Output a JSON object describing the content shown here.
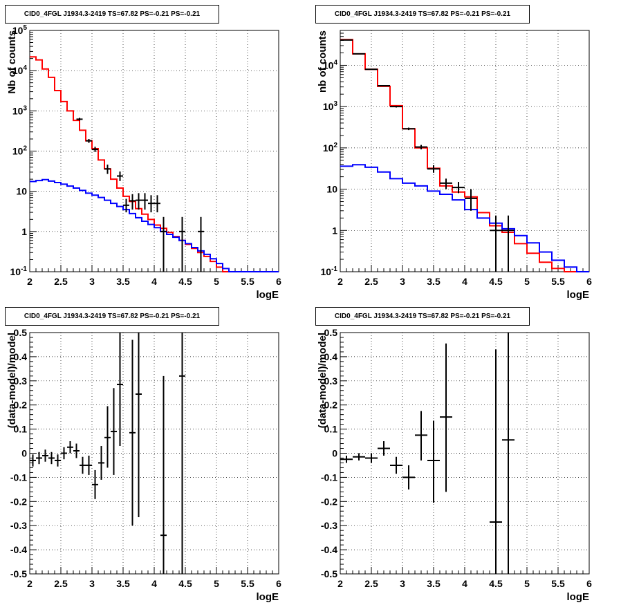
{
  "chart_data": [
    {
      "type": "step-histogram",
      "title": "CID0_4FGL J1934.3-2419 TS=67.82 PS=-0.21 PS=-0.21",
      "xlabel": "logE",
      "ylabel": "Nb of counts",
      "xlim": [
        2,
        6
      ],
      "ylim": [
        0.1,
        100000
      ],
      "yscale": "log",
      "grid": true,
      "xticks": [
        2,
        2.5,
        3,
        3.5,
        4,
        4.5,
        5,
        5.5,
        6
      ],
      "xtick_labels": [
        "2",
        "2.5",
        "3",
        "3.5",
        "4",
        "4.5",
        "5",
        "5.5",
        "6"
      ],
      "yticks": [
        0.1,
        1,
        10,
        100,
        1000,
        10000,
        100000
      ],
      "ytick_labels": [
        "10^-1",
        "1",
        "10",
        "10^2",
        "10^3",
        "10^4",
        "10^5"
      ],
      "bin_edges": [
        2.0,
        2.1,
        2.2,
        2.3,
        2.4,
        2.5,
        2.6,
        2.7,
        2.8,
        2.9,
        3.0,
        3.1,
        3.2,
        3.3,
        3.4,
        3.5,
        3.6,
        3.7,
        3.8,
        3.9,
        4.0,
        4.1,
        4.2,
        4.3,
        4.4,
        4.5,
        4.6,
        4.7,
        4.8,
        4.9,
        5.0,
        5.1,
        5.2,
        5.3,
        5.4,
        5.5,
        5.6,
        5.7,
        5.8,
        5.9,
        6.0
      ],
      "series": [
        {
          "color": "#ff0000",
          "style": "step",
          "values": [
            22000,
            18500,
            11000,
            6800,
            3200,
            1700,
            1000,
            580,
            330,
            180,
            115,
            60,
            36,
            20,
            12,
            7.5,
            5.6,
            3.7,
            2.7,
            2.0,
            1.45,
            1.2,
            0.95,
            0.75,
            0.6,
            0.48,
            0.38,
            0.3,
            0.24,
            0.18,
            0.13,
            0.1,
            0.1,
            0.1,
            0.1,
            0.1,
            0.1,
            0.1,
            0.1,
            0.1
          ]
        },
        {
          "color": "#0000ff",
          "style": "step",
          "values": [
            17.5,
            18.5,
            19.5,
            18,
            16.5,
            15,
            13.5,
            12,
            10.5,
            9,
            8,
            7,
            6,
            5,
            4.2,
            3.5,
            2.8,
            2.2,
            1.8,
            1.5,
            1.25,
            1.0,
            0.85,
            0.72,
            0.6,
            0.5,
            0.4,
            0.33,
            0.27,
            0.21,
            0.16,
            0.12,
            0.1,
            0.1,
            0.1,
            0.1,
            0.1,
            0.1,
            0.1,
            0.1
          ]
        },
        {
          "color": "#000000",
          "style": "data-points",
          "points": [
            {
              "x": 2.8,
              "y": 620,
              "ylo": 570,
              "yhi": 670
            },
            {
              "x": 2.95,
              "y": 180,
              "ylo": 160,
              "yhi": 200
            },
            {
              "x": 3.05,
              "y": 110,
              "ylo": 95,
              "yhi": 128
            },
            {
              "x": 3.25,
              "y": 36,
              "ylo": 27,
              "yhi": 46
            },
            {
              "x": 3.45,
              "y": 24,
              "ylo": 18,
              "yhi": 31
            },
            {
              "x": 3.55,
              "y": 4.5,
              "ylo": 3,
              "yhi": 6.5
            },
            {
              "x": 3.65,
              "y": 5.8,
              "ylo": 3.5,
              "yhi": 8.5
            },
            {
              "x": 3.75,
              "y": 6,
              "ylo": 3.5,
              "yhi": 9
            },
            {
              "x": 3.85,
              "y": 6,
              "ylo": 3.5,
              "yhi": 9
            },
            {
              "x": 3.95,
              "y": 5,
              "ylo": 3,
              "yhi": 8
            },
            {
              "x": 4.05,
              "y": 5,
              "ylo": 3,
              "yhi": 8
            },
            {
              "x": 4.15,
              "y": 1,
              "ylo": 0.1,
              "yhi": 2.3
            },
            {
              "x": 4.45,
              "y": 1,
              "ylo": 0.1,
              "yhi": 2.3
            },
            {
              "x": 4.75,
              "y": 1,
              "ylo": 0.1,
              "yhi": 2.3
            }
          ]
        }
      ]
    },
    {
      "type": "step-histogram",
      "title": "CID0_4FGL J1934.3-2419 TS=67.82 PS=-0.21 PS=-0.21",
      "xlabel": "logE",
      "ylabel": "nb of counts",
      "xlim": [
        2,
        6
      ],
      "ylim": [
        0.1,
        70000
      ],
      "yscale": "log",
      "grid": true,
      "xticks": [
        2,
        2.5,
        3,
        3.5,
        4,
        4.5,
        5,
        5.5,
        6
      ],
      "xtick_labels": [
        "2",
        "2.5",
        "3",
        "3.5",
        "4",
        "4.5",
        "5",
        "5.5",
        "6"
      ],
      "yticks": [
        0.1,
        1,
        10,
        100,
        1000,
        10000
      ],
      "ytick_labels": [
        "10^-1",
        "1",
        "10",
        "10^2",
        "10^3",
        "10^4"
      ],
      "bin_edges": [
        2.0,
        2.2,
        2.4,
        2.6,
        2.8,
        3.0,
        3.2,
        3.4,
        3.6,
        3.8,
        4.0,
        4.2,
        4.4,
        4.6,
        4.8,
        5.0,
        5.2,
        5.4,
        5.6,
        5.8,
        6.0
      ],
      "series": [
        {
          "color": "#ff0000",
          "style": "step",
          "values": [
            42000,
            19000,
            8000,
            3100,
            1050,
            290,
            100,
            32,
            12,
            8.5,
            6.5,
            2.7,
            1.3,
            0.9,
            0.48,
            0.28,
            0.17,
            0.12,
            0.1,
            0.1
          ]
        },
        {
          "color": "#0000ff",
          "style": "step",
          "values": [
            36,
            39,
            34,
            26,
            18,
            14,
            12,
            9,
            7.5,
            5.5,
            3.2,
            2.0,
            1.5,
            1.1,
            0.75,
            0.5,
            0.3,
            0.19,
            0.13,
            0.1
          ]
        },
        {
          "color": "#000000",
          "style": "data-points",
          "points": [
            {
              "x": 2.1,
              "y": 41000,
              "ylo": 40500,
              "yhi": 41500
            },
            {
              "x": 2.3,
              "y": 19000,
              "ylo": 18700,
              "yhi": 19300
            },
            {
              "x": 2.5,
              "y": 8000,
              "ylo": 7800,
              "yhi": 8200
            },
            {
              "x": 2.7,
              "y": 3200,
              "ylo": 3100,
              "yhi": 3300
            },
            {
              "x": 2.9,
              "y": 1000,
              "ylo": 950,
              "yhi": 1050
            },
            {
              "x": 3.1,
              "y": 290,
              "ylo": 270,
              "yhi": 310
            },
            {
              "x": 3.3,
              "y": 105,
              "ylo": 92,
              "yhi": 118
            },
            {
              "x": 3.5,
              "y": 31,
              "ylo": 25,
              "yhi": 38
            },
            {
              "x": 3.7,
              "y": 14,
              "ylo": 10,
              "yhi": 18
            },
            {
              "x": 3.9,
              "y": 11,
              "ylo": 8,
              "yhi": 15
            },
            {
              "x": 4.1,
              "y": 6,
              "ylo": 3,
              "yhi": 10
            },
            {
              "x": 4.5,
              "y": 1,
              "ylo": 0.1,
              "yhi": 2.3
            },
            {
              "x": 4.7,
              "y": 1,
              "ylo": 0.1,
              "yhi": 2.3
            }
          ]
        }
      ]
    },
    {
      "type": "scatter",
      "title": "CID0_4FGL J1934.3-2419 TS=67.82 PS=-0.21 PS=-0.21",
      "xlabel": "logE",
      "ylabel": "(data-model)/model",
      "xlim": [
        2,
        6
      ],
      "ylim": [
        -0.5,
        0.5
      ],
      "yscale": "linear",
      "grid": true,
      "xticks": [
        2,
        2.5,
        3,
        3.5,
        4,
        4.5,
        5,
        5.5,
        6
      ],
      "xtick_labels": [
        "2",
        "2.5",
        "3",
        "3.5",
        "4",
        "4.5",
        "5",
        "5.5",
        "6"
      ],
      "yticks": [
        -0.5,
        -0.4,
        -0.3,
        -0.2,
        -0.1,
        0,
        0.1,
        0.2,
        0.3,
        0.4,
        0.5
      ],
      "ytick_labels": [
        "-0.5",
        "-0.4",
        "-0.3",
        "-0.2",
        "-0.1",
        "0",
        "0.1",
        "0.2",
        "0.3",
        "0.4",
        "0.5"
      ],
      "series": [
        {
          "color": "#000000",
          "style": "data-points",
          "xerr": 0.05,
          "points": [
            {
              "x": 2.05,
              "y": -0.03,
              "ylo": -0.055,
              "yhi": -0.005
            },
            {
              "x": 2.15,
              "y": -0.02,
              "ylo": -0.045,
              "yhi": 0.005
            },
            {
              "x": 2.25,
              "y": -0.01,
              "ylo": -0.035,
              "yhi": 0.015
            },
            {
              "x": 2.35,
              "y": -0.02,
              "ylo": -0.045,
              "yhi": 0.005
            },
            {
              "x": 2.45,
              "y": -0.03,
              "ylo": -0.055,
              "yhi": -0.005
            },
            {
              "x": 2.55,
              "y": 0.0,
              "ylo": -0.025,
              "yhi": 0.025
            },
            {
              "x": 2.65,
              "y": 0.025,
              "ylo": 0.0,
              "yhi": 0.05
            },
            {
              "x": 2.75,
              "y": 0.01,
              "ylo": -0.02,
              "yhi": 0.04
            },
            {
              "x": 2.85,
              "y": -0.05,
              "ylo": -0.085,
              "yhi": -0.015
            },
            {
              "x": 2.95,
              "y": -0.05,
              "ylo": -0.09,
              "yhi": -0.01
            },
            {
              "x": 3.05,
              "y": -0.13,
              "ylo": -0.19,
              "yhi": -0.07
            },
            {
              "x": 3.15,
              "y": -0.04,
              "ylo": -0.11,
              "yhi": 0.03
            },
            {
              "x": 3.25,
              "y": 0.065,
              "ylo": -0.06,
              "yhi": 0.195
            },
            {
              "x": 3.35,
              "y": 0.09,
              "ylo": -0.09,
              "yhi": 0.27
            },
            {
              "x": 3.45,
              "y": 0.285,
              "ylo": 0.03,
              "yhi": 0.5
            },
            {
              "x": 3.65,
              "y": 0.085,
              "ylo": -0.3,
              "yhi": 0.47
            },
            {
              "x": 3.75,
              "y": 0.245,
              "ylo": -0.265,
              "yhi": 0.5
            },
            {
              "x": 4.15,
              "y": -0.34,
              "ylo": -0.5,
              "yhi": 0.32
            },
            {
              "x": 4.45,
              "y": 0.32,
              "ylo": -0.5,
              "yhi": 0.5
            }
          ]
        }
      ]
    },
    {
      "type": "scatter",
      "title": "CID0_4FGL J1934.3-2419 TS=67.82 PS=-0.21 PS=-0.21",
      "xlabel": "logE",
      "ylabel": "(data-model)/model",
      "xlim": [
        2,
        6
      ],
      "ylim": [
        -0.5,
        0.5
      ],
      "yscale": "linear",
      "grid": true,
      "xticks": [
        2,
        2.5,
        3,
        3.5,
        4,
        4.5,
        5,
        5.5,
        6
      ],
      "xtick_labels": [
        "2",
        "2.5",
        "3",
        "3.5",
        "4",
        "4.5",
        "5",
        "5.5",
        "6"
      ],
      "yticks": [
        -0.5,
        -0.4,
        -0.3,
        -0.2,
        -0.1,
        0,
        0.1,
        0.2,
        0.3,
        0.4,
        0.5
      ],
      "ytick_labels": [
        "-0.5",
        "-0.4",
        "-0.3",
        "-0.2",
        "-0.1",
        "0",
        "0.1",
        "0.2",
        "0.3",
        "0.4",
        "0.5"
      ],
      "series": [
        {
          "color": "#000000",
          "style": "data-points",
          "xerr": 0.1,
          "points": [
            {
              "x": 2.1,
              "y": -0.025,
              "ylo": -0.04,
              "yhi": -0.01
            },
            {
              "x": 2.3,
              "y": -0.015,
              "ylo": -0.03,
              "yhi": 0.0
            },
            {
              "x": 2.5,
              "y": -0.02,
              "ylo": -0.04,
              "yhi": 0.0
            },
            {
              "x": 2.7,
              "y": 0.02,
              "ylo": -0.01,
              "yhi": 0.05
            },
            {
              "x": 2.9,
              "y": -0.05,
              "ylo": -0.085,
              "yhi": -0.015
            },
            {
              "x": 3.1,
              "y": -0.1,
              "ylo": -0.15,
              "yhi": -0.05
            },
            {
              "x": 3.3,
              "y": 0.075,
              "ylo": -0.03,
              "yhi": 0.175
            },
            {
              "x": 3.5,
              "y": -0.03,
              "ylo": -0.205,
              "yhi": 0.135
            },
            {
              "x": 3.7,
              "y": 0.15,
              "ylo": -0.16,
              "yhi": 0.455
            },
            {
              "x": 4.5,
              "y": -0.285,
              "ylo": -0.5,
              "yhi": 0.43
            },
            {
              "x": 4.7,
              "y": 0.055,
              "ylo": -0.5,
              "yhi": 0.5
            }
          ]
        }
      ]
    }
  ]
}
